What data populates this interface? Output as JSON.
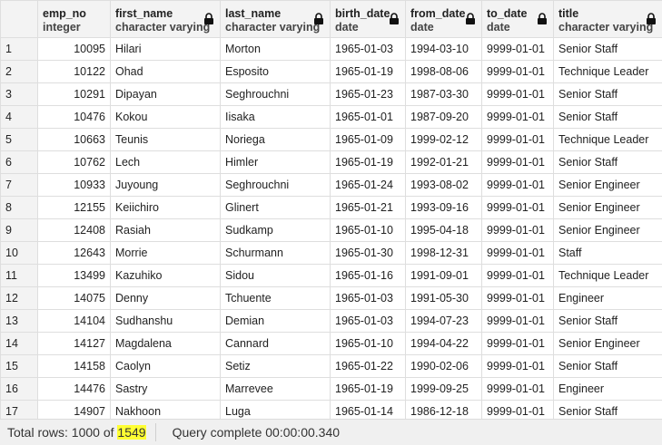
{
  "grid": {
    "columns": [
      {
        "name": "",
        "type": ""
      },
      {
        "name": "emp_no",
        "type": "integer"
      },
      {
        "name": "first_name",
        "type": "character varying"
      },
      {
        "name": "last_name",
        "type": "character varying"
      },
      {
        "name": "birth_date",
        "type": "date"
      },
      {
        "name": "from_date",
        "type": "date"
      },
      {
        "name": "to_date",
        "type": "date"
      },
      {
        "name": "title",
        "type": "character varying"
      }
    ],
    "rows": [
      [
        "1",
        "10095",
        "Hilari",
        "Morton",
        "1965-01-03",
        "1994-03-10",
        "9999-01-01",
        "Senior Staff"
      ],
      [
        "2",
        "10122",
        "Ohad",
        "Esposito",
        "1965-01-19",
        "1998-08-06",
        "9999-01-01",
        "Technique Leader"
      ],
      [
        "3",
        "10291",
        "Dipayan",
        "Seghrouchni",
        "1965-01-23",
        "1987-03-30",
        "9999-01-01",
        "Senior Staff"
      ],
      [
        "4",
        "10476",
        "Kokou",
        "Iisaka",
        "1965-01-01",
        "1987-09-20",
        "9999-01-01",
        "Senior Staff"
      ],
      [
        "5",
        "10663",
        "Teunis",
        "Noriega",
        "1965-01-09",
        "1999-02-12",
        "9999-01-01",
        "Technique Leader"
      ],
      [
        "6",
        "10762",
        "Lech",
        "Himler",
        "1965-01-19",
        "1992-01-21",
        "9999-01-01",
        "Senior Staff"
      ],
      [
        "7",
        "10933",
        "Juyoung",
        "Seghrouchni",
        "1965-01-24",
        "1993-08-02",
        "9999-01-01",
        "Senior Engineer"
      ],
      [
        "8",
        "12155",
        "Keiichiro",
        "Glinert",
        "1965-01-21",
        "1993-09-16",
        "9999-01-01",
        "Senior Engineer"
      ],
      [
        "9",
        "12408",
        "Rasiah",
        "Sudkamp",
        "1965-01-10",
        "1995-04-18",
        "9999-01-01",
        "Senior Engineer"
      ],
      [
        "10",
        "12643",
        "Morrie",
        "Schurmann",
        "1965-01-30",
        "1998-12-31",
        "9999-01-01",
        "Staff"
      ],
      [
        "11",
        "13499",
        "Kazuhiko",
        "Sidou",
        "1965-01-16",
        "1991-09-01",
        "9999-01-01",
        "Technique Leader"
      ],
      [
        "12",
        "14075",
        "Denny",
        "Tchuente",
        "1965-01-03",
        "1991-05-30",
        "9999-01-01",
        "Engineer"
      ],
      [
        "13",
        "14104",
        "Sudhanshu",
        "Demian",
        "1965-01-03",
        "1994-07-23",
        "9999-01-01",
        "Senior Staff"
      ],
      [
        "14",
        "14127",
        "Magdalena",
        "Cannard",
        "1965-01-10",
        "1994-04-22",
        "9999-01-01",
        "Senior Engineer"
      ],
      [
        "15",
        "14158",
        "Caolyn",
        "Setiz",
        "1965-01-22",
        "1990-02-06",
        "9999-01-01",
        "Senior Staff"
      ],
      [
        "16",
        "14476",
        "Sastry",
        "Marrevee",
        "1965-01-19",
        "1999-09-25",
        "9999-01-01",
        "Engineer"
      ],
      [
        "17",
        "14907",
        "Nakhoon",
        "Luga",
        "1965-01-14",
        "1986-12-18",
        "9999-01-01",
        "Senior Staff"
      ]
    ]
  },
  "status": {
    "total_prefix": "Total rows: 1000 of ",
    "total_highlight": "1549",
    "query": "Query complete 00:00:00.340"
  },
  "colors": {
    "highlight": "#ffff33",
    "header_bg": "#f3f3f3",
    "border": "#dedede"
  },
  "icons": {
    "column_lock": "lock-icon"
  }
}
